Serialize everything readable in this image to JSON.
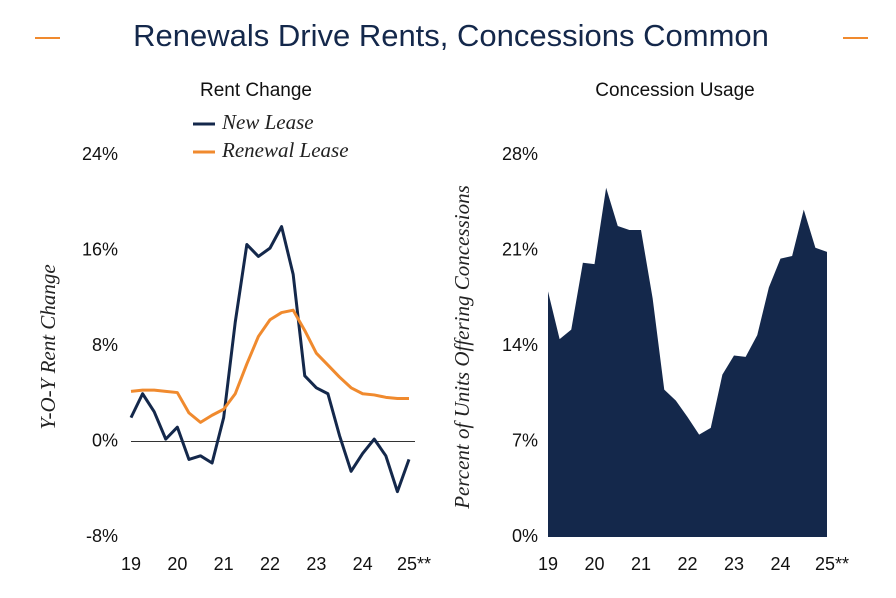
{
  "title": "Renewals Drive Rents, Concessions Common",
  "chart_data": [
    {
      "type": "line",
      "title": "Rent Change",
      "ylabel": "Y-O-Y Rent Change",
      "x": [
        2019,
        2019.25,
        2019.5,
        2019.75,
        2020,
        2020.25,
        2020.5,
        2020.75,
        2021,
        2021.25,
        2021.5,
        2021.75,
        2022,
        2022.25,
        2022.5,
        2022.75,
        2023,
        2023.25,
        2023.5,
        2023.75,
        2024,
        2024.25,
        2024.5,
        2024.75,
        2025
      ],
      "series": [
        {
          "name": "New Lease",
          "color": "#14284b",
          "values": [
            2,
            4,
            2.5,
            0.2,
            1.2,
            -1.5,
            -1.2,
            -1.8,
            2,
            10,
            16.5,
            15.5,
            16.2,
            18,
            14,
            5.5,
            4.5,
            4,
            0.5,
            -2.5,
            -1,
            0.2,
            -1.2,
            -4.2,
            -1.5
          ]
        },
        {
          "name": "Renewal Lease",
          "color": "#f08a2e",
          "values": [
            4.2,
            4.3,
            4.3,
            4.2,
            4.1,
            2.4,
            1.6,
            2.2,
            2.7,
            4,
            6.5,
            8.8,
            10.2,
            10.8,
            11,
            9.3,
            7.4,
            6.4,
            5.4,
            4.5,
            4,
            3.9,
            3.7,
            3.6,
            3.6
          ]
        }
      ],
      "xlim": [
        2019,
        2025
      ],
      "ylim": [
        -8,
        24
      ],
      "xticks": [
        {
          "value": 2019,
          "label": "19"
        },
        {
          "value": 2020,
          "label": "20"
        },
        {
          "value": 2021,
          "label": "21"
        },
        {
          "value": 2022,
          "label": "22"
        },
        {
          "value": 2023,
          "label": "23"
        },
        {
          "value": 2024,
          "label": "24"
        },
        {
          "value": 2025,
          "label": "25**"
        }
      ],
      "yticks": [
        {
          "value": 24,
          "label": "24%"
        },
        {
          "value": 16,
          "label": "16%"
        },
        {
          "value": 8,
          "label": "8%"
        },
        {
          "value": 0,
          "label": "0%"
        },
        {
          "value": -8,
          "label": "-8%"
        }
      ]
    },
    {
      "type": "area",
      "title": "Concession Usage",
      "ylabel": "Percent of Units Offering Concessions",
      "color": "#14284b",
      "x": [
        2019,
        2019.25,
        2019.5,
        2019.75,
        2020,
        2020.25,
        2020.5,
        2020.75,
        2021,
        2021.25,
        2021.5,
        2021.75,
        2022,
        2022.25,
        2022.5,
        2022.75,
        2023,
        2023.25,
        2023.5,
        2023.75,
        2024,
        2024.25,
        2024.5,
        2024.75,
        2025
      ],
      "values": [
        18,
        14.5,
        15.2,
        20.1,
        20,
        25.6,
        22.8,
        22.5,
        22.5,
        17.5,
        10.8,
        10,
        8.8,
        7.5,
        8,
        11.9,
        13.3,
        13.2,
        14.8,
        18.3,
        20.4,
        20.6,
        24,
        21.2,
        20.9
      ],
      "xlim": [
        2019,
        2025
      ],
      "ylim": [
        0,
        28
      ],
      "xticks": [
        {
          "value": 2019,
          "label": "19"
        },
        {
          "value": 2020,
          "label": "20"
        },
        {
          "value": 2021,
          "label": "21"
        },
        {
          "value": 2022,
          "label": "22"
        },
        {
          "value": 2023,
          "label": "23"
        },
        {
          "value": 2024,
          "label": "24"
        },
        {
          "value": 2025,
          "label": "25**"
        }
      ],
      "yticks": [
        {
          "value": 28,
          "label": "28%"
        },
        {
          "value": 21,
          "label": "21%"
        },
        {
          "value": 14,
          "label": "14%"
        },
        {
          "value": 7,
          "label": "7%"
        },
        {
          "value": 0,
          "label": "0%"
        }
      ]
    }
  ]
}
